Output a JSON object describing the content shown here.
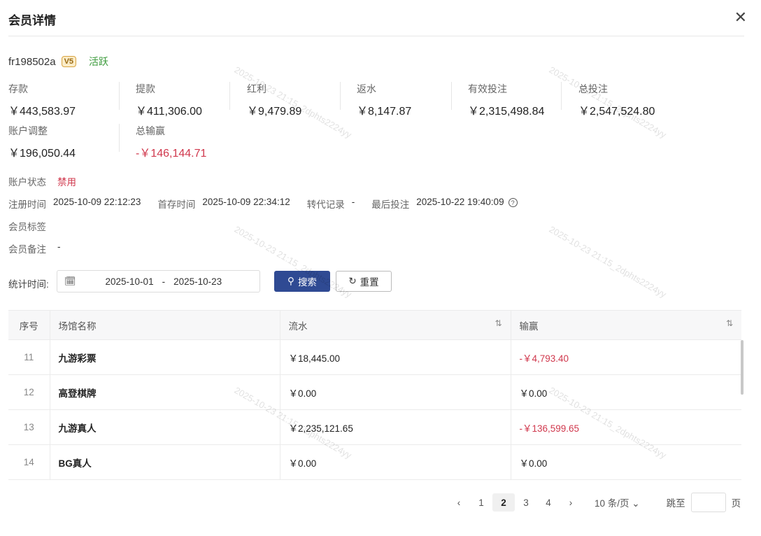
{
  "header": {
    "title": "会员详情",
    "close_icon": "close-icon"
  },
  "member": {
    "username": "fr198502a",
    "vip": "V5",
    "activity": "活跃"
  },
  "stats": [
    {
      "label": "存款",
      "value": "￥443,583.97"
    },
    {
      "label": "提款",
      "value": "￥411,306.00"
    },
    {
      "label": "红利",
      "value": "￥9,479.89"
    },
    {
      "label": "返水",
      "value": "￥8,147.87"
    },
    {
      "label": "有效投注",
      "value": "￥2,315,498.84"
    },
    {
      "label": "总投注",
      "value": "￥2,547,524.80"
    },
    {
      "label": "账户调整",
      "value": "￥196,050.44"
    },
    {
      "label": "总输赢",
      "value": "-￥146,144.71"
    }
  ],
  "info": {
    "status_label": "账户状态",
    "status_value": "禁用",
    "register_label": "注册时间",
    "register_value": "2025-10-09 22:12:23",
    "first_deposit_label": "首存时间",
    "first_deposit_value": "2025-10-09 22:34:12",
    "transfer_label": "转代记录",
    "transfer_value": "-",
    "last_bet_label": "最后投注",
    "last_bet_value": "2025-10-22 19:40:09",
    "tags_label": "会员标签",
    "remark_label": "会员备注",
    "remark_value": "-"
  },
  "filter": {
    "label": "统计时间:",
    "start": "2025-10-01",
    "sep": "-",
    "end": "2025-10-23",
    "search": "搜索",
    "reset": "重置"
  },
  "table": {
    "columns": [
      "序号",
      "场馆名称",
      "流水",
      "输赢"
    ],
    "rows": [
      {
        "no": "11",
        "venue": "九游彩票",
        "turnover": "￥18,445.00",
        "win": "-￥4,793.40",
        "neg": true
      },
      {
        "no": "12",
        "venue": "高登棋牌",
        "turnover": "￥0.00",
        "win": "￥0.00",
        "neg": false
      },
      {
        "no": "13",
        "venue": "九游真人",
        "turnover": "￥2,235,121.65",
        "win": "-￥136,599.65",
        "neg": true
      },
      {
        "no": "14",
        "venue": "BG真人",
        "turnover": "￥0.00",
        "win": "￥0.00",
        "neg": false
      }
    ]
  },
  "pagination": {
    "pages": [
      "1",
      "2",
      "3",
      "4"
    ],
    "current": "2",
    "page_size": "10 条/页",
    "jump_label": "跳至",
    "page_suffix": "页"
  },
  "watermark": "2025-10-23 21:15_2dphts2224yy",
  "colors": {
    "primary": "#2f4a93",
    "negative": "#d0384d",
    "active": "#3a9a3a"
  }
}
